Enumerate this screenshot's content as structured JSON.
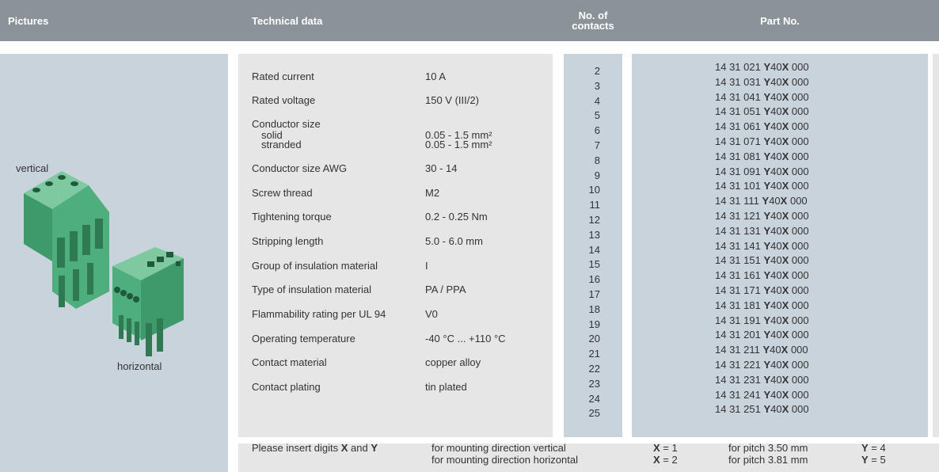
{
  "header": {
    "pictures": "Pictures",
    "technical_data": "Technical data",
    "contacts": [
      "No. of",
      "contacts"
    ],
    "part_no": "Part No."
  },
  "pictures": {
    "vertical": "vertical",
    "horizontal": "horizontal"
  },
  "technical_data": [
    {
      "label": "Rated current",
      "value": "10 A"
    },
    {
      "label": "Rated voltage",
      "value": "150 V (III/2)"
    },
    {
      "label": "Conductor size",
      "sub": [
        {
          "label": "solid",
          "value": "0.05 - 1.5 mm²"
        },
        {
          "label": "stranded",
          "value": "0.05 - 1.5 mm²"
        }
      ]
    },
    {
      "label": "Conductor size AWG",
      "value": "30 - 14"
    },
    {
      "label": "Screw thread",
      "value": "M2"
    },
    {
      "label": "Tightening torque",
      "value": "0.2 - 0.25 Nm"
    },
    {
      "label": "Stripping length",
      "value": "5.0 - 6.0 mm"
    },
    {
      "label": "Group of insulation material",
      "value": "I"
    },
    {
      "label": "Type of insulation material",
      "value": "PA / PPA"
    },
    {
      "label": "Flammability rating per UL 94",
      "value": "V0"
    },
    {
      "label": "Operating temperature",
      "value": "-40 °C ... +110 °C"
    },
    {
      "label": "Contact material",
      "value": "copper alloy"
    },
    {
      "label": "Contact plating",
      "value": "tin plated"
    }
  ],
  "contacts": [
    2,
    3,
    4,
    5,
    6,
    7,
    8,
    9,
    10,
    11,
    12,
    13,
    14,
    15,
    16,
    17,
    18,
    19,
    20,
    21,
    22,
    23,
    24,
    25
  ],
  "part_numbers": [
    {
      "base": "14 31 021",
      "y": "Y",
      "code": "40",
      "x": "X",
      "end": "000"
    },
    {
      "base": "14 31 031",
      "y": "Y",
      "code": "40",
      "x": "X",
      "end": "000"
    },
    {
      "base": "14 31 041",
      "y": "Y",
      "code": "40",
      "x": "X",
      "end": "000"
    },
    {
      "base": "14 31 051",
      "y": "Y",
      "code": "40",
      "x": "X",
      "end": "000"
    },
    {
      "base": "14 31 061",
      "y": "Y",
      "code": "40",
      "x": "X",
      "end": "000"
    },
    {
      "base": "14 31 071",
      "y": "Y",
      "code": "40",
      "x": "X",
      "end": "000"
    },
    {
      "base": "14 31 081",
      "y": "Y",
      "code": "40",
      "x": "X",
      "end": "000"
    },
    {
      "base": "14 31 091",
      "y": "Y",
      "code": "40",
      "x": "X",
      "end": "000"
    },
    {
      "base": "14 31 101",
      "y": "Y",
      "code": "40",
      "x": "X",
      "end": "000"
    },
    {
      "base": "14 31 111",
      "y": "Y",
      "code": "40",
      "x": "X",
      "end": "000"
    },
    {
      "base": "14 31 121",
      "y": "Y",
      "code": "40",
      "x": "X",
      "end": "000"
    },
    {
      "base": "14 31 131",
      "y": "Y",
      "code": "40",
      "x": "X",
      "end": "000"
    },
    {
      "base": "14 31 141",
      "y": "Y",
      "code": "40",
      "x": "X",
      "end": "000"
    },
    {
      "base": "14 31 151",
      "y": "Y",
      "code": "40",
      "x": "X",
      "end": "000"
    },
    {
      "base": "14 31 161",
      "y": "Y",
      "code": "40",
      "x": "X",
      "end": "000"
    },
    {
      "base": "14 31 171",
      "y": "Y",
      "code": "40",
      "x": "X",
      "end": "000"
    },
    {
      "base": "14 31 181",
      "y": "Y",
      "code": "40",
      "x": "X",
      "end": "000"
    },
    {
      "base": "14 31 191",
      "y": "Y",
      "code": "40",
      "x": "X",
      "end": "000"
    },
    {
      "base": "14 31 201",
      "y": "Y",
      "code": "40",
      "x": "X",
      "end": "000"
    },
    {
      "base": "14 31 211",
      "y": "Y",
      "code": "40",
      "x": "X",
      "end": "000"
    },
    {
      "base": "14 31 221",
      "y": "Y",
      "code": "40",
      "x": "X",
      "end": "000"
    },
    {
      "base": "14 31 231",
      "y": "Y",
      "code": "40",
      "x": "X",
      "end": "000"
    },
    {
      "base": "14 31 241",
      "y": "Y",
      "code": "40",
      "x": "X",
      "end": "000"
    },
    {
      "base": "14 31 251",
      "y": "Y",
      "code": "40",
      "x": "X",
      "end": "000"
    }
  ],
  "footer": {
    "intro": {
      "text": "Please insert digits",
      "x": "X",
      "and": "and",
      "y": "Y"
    },
    "rows": [
      {
        "direction": "for mounting direction vertical",
        "x_label": "X",
        "x_value": "= 1",
        "pitch": "for pitch 3.50 mm",
        "y_label": "Y",
        "y_value": "= 4"
      },
      {
        "direction": "for mounting direction horizontal",
        "x_label": "X",
        "x_value": "= 2",
        "pitch": "for pitch 3.81 mm",
        "y_label": "Y",
        "y_value": "= 5"
      }
    ]
  }
}
